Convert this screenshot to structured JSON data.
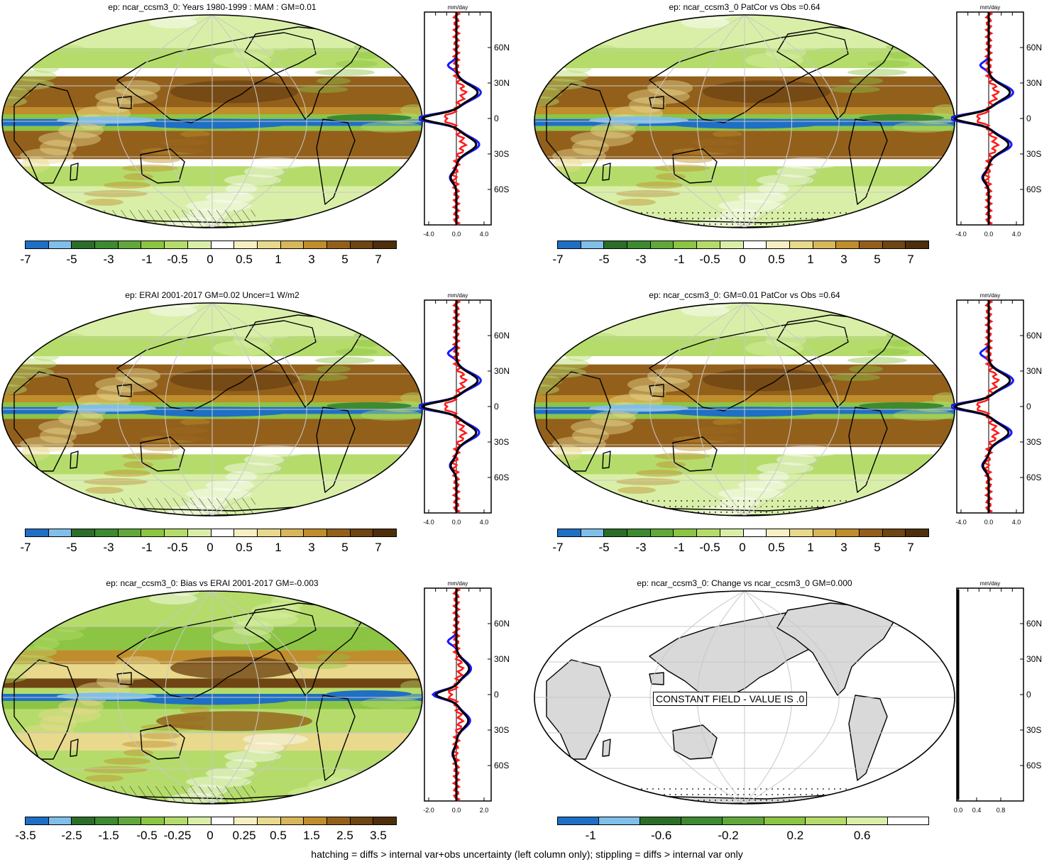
{
  "figure": {
    "footer": "hatching = diffs > internal var+obs uncertainty (left column only); stippling = diffs > internal var only",
    "zonal_unit": "mm/day",
    "lat_labels": [
      "60N",
      "30N",
      "0",
      "30S",
      "60S"
    ],
    "colors": {
      "palette_std": [
        "#1f6fc4",
        "#7fbfea",
        "#2b6e27",
        "#3d8a30",
        "#61a83a",
        "#8cc443",
        "#b5dc6b",
        "#d9efa8",
        "#ffffff",
        "#f6efc2",
        "#e8d98d",
        "#d8b659",
        "#bf8d2c",
        "#93601c",
        "#6f4513",
        "#4e2e0b"
      ],
      "palette_change": [
        "#1f6fc4",
        "#7fbfea",
        "#2b6e27",
        "#3d8a30",
        "#61a83a",
        "#8cc443",
        "#b5dc6b",
        "#d9efa8",
        "#ffffff"
      ],
      "obs_line": "#1a1aff",
      "model_line": "#ff1a1a",
      "mean_line": "#000000",
      "land_gray": "#d9d9d9"
    }
  },
  "panels": [
    {
      "title": "ep: ncar_ccsm3_0: Years 1980-1999 : MAM : GM=0.01",
      "cbar_labels": [
        "-7",
        "-5",
        "-3",
        "-1",
        "-0.5",
        "0",
        "0.5",
        "1",
        "3",
        "5",
        "7"
      ],
      "xticks": [
        "-4.0",
        "0.0",
        "4.0"
      ],
      "hatching": true
    },
    {
      "title": "ep: ncar_ccsm3_0 PatCor vs Obs =0.64",
      "cbar_labels": [
        "-7",
        "-5",
        "-3",
        "-1",
        "-0.5",
        "0",
        "0.5",
        "1",
        "3",
        "5",
        "7"
      ],
      "xticks": [
        "-4.0",
        "0.0",
        "4.0"
      ],
      "hatching": false
    },
    {
      "title": "ep: ERAI 2001-2017 GM=0.02 Uncer=1 W/m2",
      "cbar_labels": [
        "-7",
        "-5",
        "-3",
        "-1",
        "-0.5",
        "0",
        "0.5",
        "1",
        "3",
        "5",
        "7"
      ],
      "xticks": [
        "-4.0",
        "0.0",
        "4.0"
      ],
      "hatching": true
    },
    {
      "title": "ep: ncar_ccsm3_0: GM=0.01 PatCor vs Obs =0.64",
      "cbar_labels": [
        "-7",
        "-5",
        "-3",
        "-1",
        "-0.5",
        "0",
        "0.5",
        "1",
        "3",
        "5",
        "7"
      ],
      "xticks": [
        "-4.0",
        "0.0",
        "4.0"
      ],
      "hatching": false
    },
    {
      "title": "ep: ncar_ccsm3_0: Bias vs ERAI 2001-2017 GM=-0.003",
      "cbar_labels": [
        "-3.5",
        "-2.5",
        "-1.5",
        "-0.5",
        "-0.25",
        "0",
        "0.25",
        "0.5",
        "1.5",
        "2.5",
        "3.5"
      ],
      "xticks": [
        "-2.0",
        "0.0",
        "2.0"
      ],
      "hatching": true
    },
    {
      "title": "ep: ncar_ccsm3_0: Change vs ncar_ccsm3_0 GM=0.000",
      "cbar_labels": [
        "-1",
        "-0.6",
        "-0.2",
        "0.2",
        "0.6"
      ],
      "xticks": [
        "0.0",
        "0.4",
        "0.8"
      ],
      "constant_label": "CONSTANT FIELD - VALUE IS .0",
      "hatching": false
    }
  ]
}
